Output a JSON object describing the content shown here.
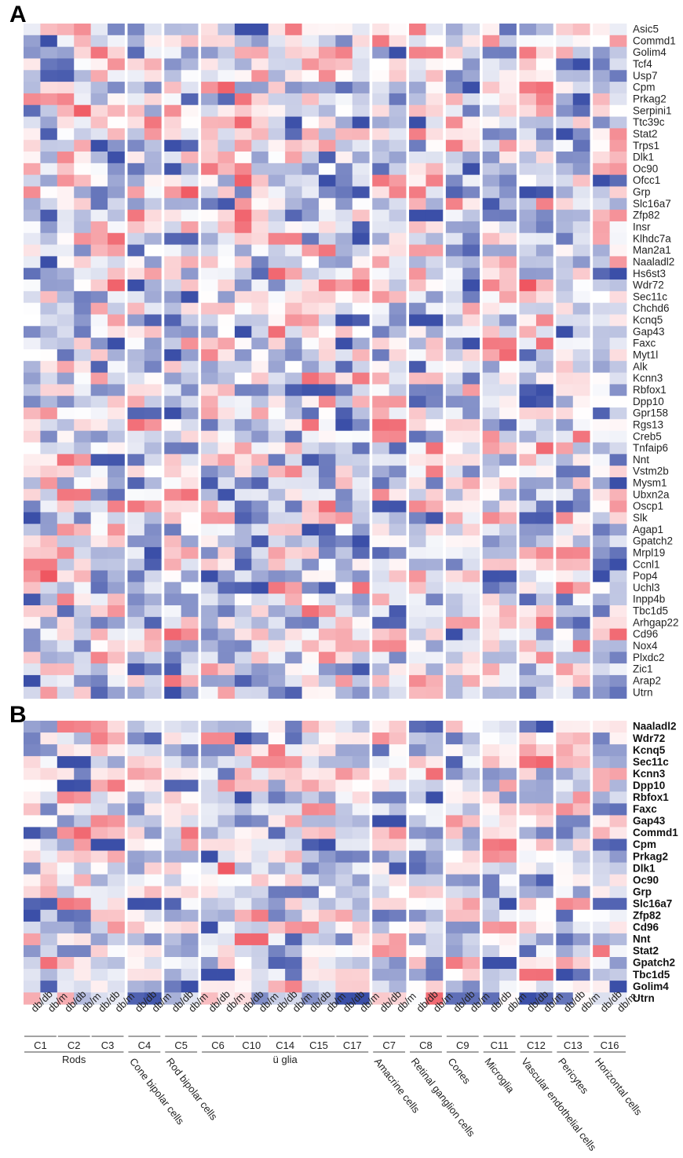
{
  "chart_data": [
    {
      "panel": "A",
      "type": "heatmap",
      "genes": [
        "Asic5",
        "Commd1",
        "Golim4",
        "Tcf4",
        "Usp7",
        "Cpm",
        "Prkag2",
        "Serpini1",
        "Ttc39c",
        "Stat2",
        "Trps1",
        "Dlk1",
        "Oc90",
        "Ofcc1",
        "Grp",
        "Slc16a7",
        "Zfp82",
        "Insr",
        "Klhdc7a",
        "Man2a1",
        "Naaladl2",
        "Hs6st3",
        "Wdr72",
        "Sec11c",
        "Chchd6",
        "Kcnq5",
        "Gap43",
        "Faxc",
        "Myt1l",
        "Alk",
        "Kcnn3",
        "Rbfox1",
        "Dpp10",
        "Gpr158",
        "Rgs13",
        "Creb5",
        "Tnfaip6",
        "Nnt",
        "Vstm2b",
        "Mysm1",
        "Ubxn2a",
        "Oscp1",
        "Slk",
        "Agap1",
        "Gpatch2",
        "Mrpl19",
        "Ccnl1",
        "Pop4",
        "Uchl3",
        "Inpp4b",
        "Tbc1d5",
        "Arhgap22",
        "Cd96",
        "Nox4",
        "Plxdc2",
        "Zic1",
        "Arap2",
        "Utrn"
      ],
      "color_scale": {
        "low": "#3b4fa8",
        "mid": "#ffffff",
        "high": "#ee4a55"
      }
    },
    {
      "panel": "B",
      "type": "heatmap",
      "genes": [
        "Naaladl2",
        "Wdr72",
        "Kcnq5",
        "Sec11c",
        "Kcnn3",
        "Dpp10",
        "Rbfox1",
        "Faxc",
        "Gap43",
        "Commd1",
        "Cpm",
        "Prkag2",
        "Dlk1",
        "Oc90",
        "Grp",
        "Slc16a7",
        "Zfp82",
        "Cd96",
        "Nnt",
        "Stat2",
        "Gpatch2",
        "Tbc1d5",
        "Golim4",
        "Utrn"
      ],
      "color_scale": {
        "low": "#3b4fa8",
        "mid": "#ffffff",
        "high": "#ee4a55"
      }
    }
  ],
  "conditions": [
    "db/db",
    "db/m"
  ],
  "clusters": [
    "C1",
    "C2",
    "C3",
    "C4",
    "C5",
    "C6",
    "C10",
    "C14",
    "C15",
    "C17",
    "C7",
    "C8",
    "C9",
    "C11",
    "C12",
    "C13",
    "C16"
  ],
  "cell_groups": [
    {
      "label": "Rods",
      "clusters": [
        "C1",
        "C2",
        "C3"
      ]
    },
    {
      "label": "Cone bipolar cells",
      "clusters": [
        "C4"
      ]
    },
    {
      "label": "Rod bipolar cells",
      "clusters": [
        "C5"
      ]
    },
    {
      "label": "ü glia",
      "clusters": [
        "C6",
        "C10",
        "C14",
        "C15",
        "C17"
      ]
    },
    {
      "label": "Amacrine cells",
      "clusters": [
        "C7"
      ]
    },
    {
      "label": "Retinal ganglion cells",
      "clusters": [
        "C8"
      ]
    },
    {
      "label": "Cones",
      "clusters": [
        "C9"
      ]
    },
    {
      "label": "Microglia",
      "clusters": [
        "C11"
      ]
    },
    {
      "label": "Vascular endothelial cells",
      "clusters": [
        "C12"
      ]
    },
    {
      "label": "Pericytes",
      "clusters": [
        "C13"
      ]
    },
    {
      "label": "Horizontal cells",
      "clusters": [
        "C16"
      ]
    }
  ]
}
